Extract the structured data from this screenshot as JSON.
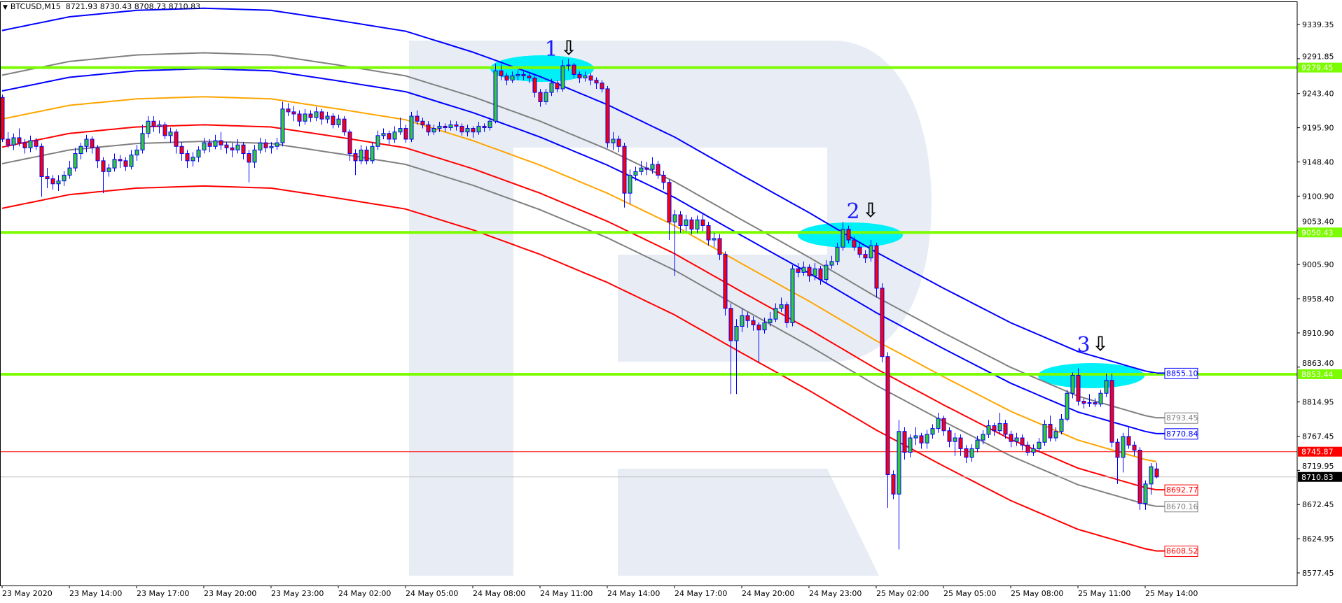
{
  "header": {
    "menu_icon": "triangle-down-icon",
    "symbol": "BTCUSD,M15",
    "ohlc": "8721.93 8730.43 8708.73 8710.83"
  },
  "chart_data": {
    "type": "candlestick",
    "symbol": "BTCUSD",
    "timeframe": "M15",
    "colors": {
      "bull_body": "#32cd32",
      "bear_body": "#ff0000",
      "outline": "#0000ff",
      "midline": "#ffa500",
      "level": "#7cfc00",
      "watermark": "#e8edf5",
      "highlight": "#00f0f8"
    },
    "yaxis": {
      "range": [
        8577.45,
        9339.35
      ],
      "ticks": [
        "9339.35",
        "9291.85",
        "9243.40",
        "9195.90",
        "9148.40",
        "9100.90",
        "9053.40",
        "9005.90",
        "8958.40",
        "8910.90",
        "8863.40",
        "8814.95",
        "8767.45",
        "8719.95",
        "8672.45",
        "8624.95",
        "8577.45"
      ]
    },
    "xaxis": {
      "ticks": [
        "23 May 2020",
        "23 May 14:00",
        "23 May 17:00",
        "23 May 20:00",
        "23 May 23:00",
        "24 May 02:00",
        "24 May 05:00",
        "24 May 08:00",
        "24 May 11:00",
        "24 May 14:00",
        "24 May 17:00",
        "24 May 20:00",
        "24 May 23:00",
        "25 May 02:00",
        "25 May 05:00",
        "25 May 08:00",
        "25 May 11:00",
        "25 May 14:00"
      ],
      "bars_per_tick": 12
    },
    "candles_ohlc": [
      [
        9238,
        9242,
        9176,
        9180
      ],
      [
        9180,
        9190,
        9168,
        9172
      ],
      [
        9172,
        9188,
        9165,
        9182
      ],
      [
        9182,
        9195,
        9170,
        9175
      ],
      [
        9175,
        9180,
        9160,
        9168
      ],
      [
        9168,
        9185,
        9162,
        9178
      ],
      [
        9178,
        9182,
        9165,
        9170
      ],
      [
        9170,
        9174,
        9100,
        9128
      ],
      [
        9128,
        9140,
        9112,
        9125
      ],
      [
        9125,
        9130,
        9110,
        9118
      ],
      [
        9118,
        9130,
        9108,
        9122
      ],
      [
        9122,
        9136,
        9115,
        9130
      ],
      [
        9130,
        9150,
        9125,
        9140
      ],
      [
        9140,
        9168,
        9135,
        9160
      ],
      [
        9160,
        9175,
        9152,
        9170
      ],
      [
        9170,
        9186,
        9162,
        9180
      ],
      [
        9180,
        9184,
        9160,
        9168
      ],
      [
        9168,
        9172,
        9140,
        9150
      ],
      [
        9150,
        9155,
        9105,
        9135
      ],
      [
        9135,
        9146,
        9128,
        9140
      ],
      [
        9140,
        9160,
        9135,
        9152
      ],
      [
        9152,
        9158,
        9140,
        9150
      ],
      [
        9150,
        9155,
        9136,
        9142
      ],
      [
        9142,
        9165,
        9138,
        9158
      ],
      [
        9158,
        9172,
        9150,
        9165
      ],
      [
        9165,
        9200,
        9160,
        9188
      ],
      [
        9188,
        9212,
        9182,
        9205
      ],
      [
        9205,
        9212,
        9190,
        9198
      ],
      [
        9198,
        9206,
        9188,
        9200
      ],
      [
        9200,
        9204,
        9180,
        9185
      ],
      [
        9185,
        9196,
        9175,
        9190
      ],
      [
        9190,
        9194,
        9160,
        9170
      ],
      [
        9170,
        9176,
        9150,
        9160
      ],
      [
        9160,
        9165,
        9140,
        9150
      ],
      [
        9150,
        9162,
        9142,
        9155
      ],
      [
        9155,
        9170,
        9148,
        9165
      ],
      [
        9165,
        9182,
        9160,
        9175
      ],
      [
        9175,
        9180,
        9162,
        9170
      ],
      [
        9170,
        9186,
        9166,
        9178
      ],
      [
        9178,
        9190,
        9165,
        9172
      ],
      [
        9172,
        9176,
        9160,
        9168
      ],
      [
        9168,
        9175,
        9155,
        9165
      ],
      [
        9165,
        9180,
        9160,
        9172
      ],
      [
        9172,
        9176,
        9152,
        9160
      ],
      [
        9160,
        9165,
        9120,
        9148
      ],
      [
        9148,
        9172,
        9140,
        9165
      ],
      [
        9165,
        9182,
        9160,
        9175
      ],
      [
        9175,
        9180,
        9162,
        9168
      ],
      [
        9168,
        9176,
        9160,
        9170
      ],
      [
        9170,
        9182,
        9165,
        9175
      ],
      [
        9175,
        9232,
        9170,
        9222
      ],
      [
        9222,
        9230,
        9212,
        9218
      ],
      [
        9218,
        9226,
        9205,
        9215
      ],
      [
        9215,
        9220,
        9198,
        9205
      ],
      [
        9205,
        9222,
        9200,
        9215
      ],
      [
        9215,
        9220,
        9204,
        9210
      ],
      [
        9210,
        9225,
        9205,
        9218
      ],
      [
        9218,
        9222,
        9200,
        9208
      ],
      [
        9208,
        9218,
        9202,
        9212
      ],
      [
        9212,
        9216,
        9195,
        9200
      ],
      [
        9200,
        9214,
        9196,
        9208
      ],
      [
        9208,
        9212,
        9185,
        9190
      ],
      [
        9190,
        9194,
        9150,
        9160
      ],
      [
        9160,
        9166,
        9130,
        9150
      ],
      [
        9150,
        9172,
        9145,
        9165
      ],
      [
        9165,
        9170,
        9145,
        9150
      ],
      [
        9150,
        9176,
        9146,
        9170
      ],
      [
        9170,
        9192,
        9165,
        9185
      ],
      [
        9185,
        9195,
        9180,
        9188
      ],
      [
        9188,
        9192,
        9172,
        9180
      ],
      [
        9180,
        9198,
        9175,
        9190
      ],
      [
        9190,
        9210,
        9186,
        9195
      ],
      [
        9195,
        9200,
        9175,
        9180
      ],
      [
        9180,
        9218,
        9176,
        9212
      ],
      [
        9212,
        9220,
        9200,
        9205
      ],
      [
        9205,
        9210,
        9195,
        9200
      ],
      [
        9200,
        9205,
        9185,
        9190
      ],
      [
        9190,
        9200,
        9186,
        9195
      ],
      [
        9195,
        9204,
        9190,
        9198
      ],
      [
        9198,
        9202,
        9190,
        9196
      ],
      [
        9196,
        9206,
        9192,
        9200
      ],
      [
        9200,
        9205,
        9192,
        9198
      ],
      [
        9198,
        9202,
        9185,
        9190
      ],
      [
        9190,
        9200,
        9184,
        9195
      ],
      [
        9195,
        9198,
        9182,
        9190
      ],
      [
        9190,
        9204,
        9186,
        9198
      ],
      [
        9198,
        9202,
        9190,
        9196
      ],
      [
        9196,
        9210,
        9192,
        9205
      ],
      [
        9205,
        9285,
        9202,
        9275
      ],
      [
        9275,
        9284,
        9262,
        9268
      ],
      [
        9268,
        9272,
        9255,
        9262
      ],
      [
        9262,
        9274,
        9258,
        9268
      ],
      [
        9268,
        9276,
        9262,
        9270
      ],
      [
        9270,
        9274,
        9262,
        9268
      ],
      [
        9268,
        9272,
        9258,
        9265
      ],
      [
        9265,
        9268,
        9238,
        9245
      ],
      [
        9245,
        9250,
        9225,
        9232
      ],
      [
        9232,
        9250,
        9228,
        9245
      ],
      [
        9245,
        9264,
        9240,
        9258
      ],
      [
        9258,
        9262,
        9245,
        9250
      ],
      [
        9250,
        9290,
        9246,
        9282
      ],
      [
        9282,
        9292,
        9275,
        9283
      ],
      [
        9283,
        9286,
        9265,
        9270
      ],
      [
        9270,
        9274,
        9258,
        9265
      ],
      [
        9265,
        9274,
        9260,
        9268
      ],
      [
        9268,
        9272,
        9255,
        9262
      ],
      [
        9262,
        9266,
        9250,
        9258
      ],
      [
        9258,
        9262,
        9245,
        9250
      ],
      [
        9250,
        9254,
        9168,
        9175
      ],
      [
        9175,
        9190,
        9165,
        9180
      ],
      [
        9180,
        9185,
        9162,
        9170
      ],
      [
        9170,
        9175,
        9085,
        9105
      ],
      [
        9105,
        9138,
        9090,
        9130
      ],
      [
        9130,
        9142,
        9122,
        9135
      ],
      [
        9135,
        9150,
        9130,
        9140
      ],
      [
        9140,
        9148,
        9130,
        9138
      ],
      [
        9138,
        9155,
        9132,
        9145
      ],
      [
        9145,
        9150,
        9125,
        9130
      ],
      [
        9130,
        9136,
        9110,
        9120
      ],
      [
        9120,
        9124,
        9040,
        9065
      ],
      [
        9065,
        9082,
        8990,
        9075
      ],
      [
        9075,
        9080,
        9050,
        9060
      ],
      [
        9060,
        9075,
        9052,
        9068
      ],
      [
        9068,
        9072,
        9048,
        9055
      ],
      [
        9055,
        9074,
        9050,
        9068
      ],
      [
        9068,
        9076,
        9052,
        9060
      ],
      [
        9060,
        9065,
        9032,
        9040
      ],
      [
        9040,
        9050,
        9030,
        9042
      ],
      [
        9042,
        9048,
        9012,
        9020
      ],
      [
        9020,
        9024,
        8935,
        8945
      ],
      [
        8945,
        8952,
        8826,
        8900
      ],
      [
        8900,
        8930,
        8826,
        8920
      ],
      [
        8920,
        8945,
        8912,
        8935
      ],
      [
        8935,
        8940,
        8918,
        8928
      ],
      [
        8928,
        8934,
        8914,
        8922
      ],
      [
        8922,
        8926,
        8870,
        8915
      ],
      [
        8915,
        8932,
        8910,
        8925
      ],
      [
        8925,
        8940,
        8920,
        8930
      ],
      [
        8930,
        8952,
        8926,
        8945
      ],
      [
        8945,
        8960,
        8940,
        8950
      ],
      [
        8950,
        8954,
        8918,
        8925
      ],
      [
        8925,
        9005,
        8920,
        9000
      ],
      [
        9000,
        9008,
        8988,
        8995
      ],
      [
        8995,
        9010,
        8990,
        9002
      ],
      [
        9002,
        9006,
        8982,
        8990
      ],
      [
        8990,
        9008,
        8984,
        9000
      ],
      [
        9000,
        9004,
        8978,
        8985
      ],
      [
        8985,
        9012,
        8980,
        9005
      ],
      [
        9005,
        9018,
        9000,
        9010
      ],
      [
        9010,
        9036,
        9005,
        9030
      ],
      [
        9030,
        9065,
        9025,
        9055
      ],
      [
        9055,
        9060,
        9035,
        9040
      ],
      [
        9040,
        9045,
        9025,
        9030
      ],
      [
        9030,
        9036,
        9015,
        9020
      ],
      [
        9020,
        9026,
        9008,
        9015
      ],
      [
        9015,
        9040,
        9010,
        9032
      ],
      [
        9032,
        9036,
        8960,
        8973
      ],
      [
        8973,
        8980,
        8870,
        8878
      ],
      [
        8878,
        8884,
        8668,
        8714
      ],
      [
        8714,
        8720,
        8680,
        8687
      ],
      [
        8687,
        8790,
        8610,
        8774
      ],
      [
        8774,
        8780,
        8735,
        8745
      ],
      [
        8745,
        8770,
        8738,
        8765
      ],
      [
        8765,
        8780,
        8755,
        8768
      ],
      [
        8768,
        8772,
        8750,
        8758
      ],
      [
        8758,
        8776,
        8750,
        8770
      ],
      [
        8770,
        8784,
        8764,
        8778
      ],
      [
        8778,
        8800,
        8772,
        8792
      ],
      [
        8792,
        8796,
        8768,
        8775
      ],
      [
        8775,
        8780,
        8752,
        8760
      ],
      [
        8760,
        8772,
        8740,
        8765
      ],
      [
        8765,
        8770,
        8740,
        8750
      ],
      [
        8750,
        8755,
        8730,
        8738
      ],
      [
        8738,
        8756,
        8732,
        8750
      ],
      [
        8750,
        8768,
        8745,
        8762
      ],
      [
        8762,
        8776,
        8756,
        8770
      ],
      [
        8770,
        8790,
        8765,
        8782
      ],
      [
        8782,
        8786,
        8768,
        8775
      ],
      [
        8775,
        8800,
        8770,
        8785
      ],
      [
        8785,
        8790,
        8764,
        8770
      ],
      [
        8770,
        8775,
        8752,
        8760
      ],
      [
        8760,
        8772,
        8754,
        8765
      ],
      [
        8765,
        8770,
        8748,
        8755
      ],
      [
        8755,
        8760,
        8740,
        8745
      ],
      [
        8745,
        8756,
        8740,
        8750
      ],
      [
        8750,
        8765,
        8745,
        8759
      ],
      [
        8759,
        8790,
        8754,
        8784
      ],
      [
        8784,
        8796,
        8760,
        8765
      ],
      [
        8765,
        8780,
        8760,
        8774
      ],
      [
        8774,
        8798,
        8770,
        8791
      ],
      [
        8791,
        8832,
        8788,
        8827
      ],
      [
        8827,
        8856,
        8820,
        8852
      ],
      [
        8852,
        8862,
        8810,
        8816
      ],
      [
        8816,
        8820,
        8806,
        8813
      ],
      [
        8813,
        8826,
        8808,
        8814
      ],
      [
        8814,
        8820,
        8808,
        8812
      ],
      [
        8812,
        8832,
        8808,
        8827
      ],
      [
        8827,
        8854,
        8822,
        8845
      ],
      [
        8845,
        8854,
        8752,
        8759
      ],
      [
        8759,
        8764,
        8701,
        8738
      ],
      [
        8738,
        8772,
        8717,
        8767
      ],
      [
        8767,
        8780,
        8750,
        8755
      ],
      [
        8755,
        8760,
        8740,
        8748
      ],
      [
        8748,
        8752,
        8665,
        8674
      ],
      [
        8674,
        8706,
        8665,
        8701
      ],
      [
        8701,
        8730,
        8686,
        8725
      ],
      [
        8721.93,
        8730.43,
        8708.73,
        8710.83
      ]
    ],
    "channel": {
      "midline_at_ticks": [
        9208,
        9227,
        9236,
        9239,
        9236,
        9222,
        9207,
        9178,
        9144,
        9105,
        9060,
        9007,
        8955,
        8900,
        8850,
        8802,
        8762,
        8735
      ],
      "midline_last": 8732,
      "bands": [
        {
          "color": "#0000ff",
          "offset": 123,
          "label": "8855.10"
        },
        {
          "color": "#808080",
          "offset": 61,
          "label": "8793.45"
        },
        {
          "color": "#0000ff",
          "offset": 39,
          "label": "8770.84"
        },
        {
          "color": "#ff0000",
          "offset": -39,
          "label": "8692.77"
        },
        {
          "color": "#808080",
          "offset": -62,
          "label": "8670.16"
        },
        {
          "color": "#ff0000",
          "offset": -124,
          "label": "8608.52"
        }
      ]
    },
    "levels": [
      {
        "price": 9279.45,
        "label": "9279.45",
        "color": "#7cfc00",
        "style": "thick"
      },
      {
        "price": 9050.43,
        "label": "9050.43",
        "color": "#7cfc00",
        "style": "thick"
      },
      {
        "price": 8853.44,
        "label": "8853.44",
        "color": "#7cfc00",
        "style": "thick"
      },
      {
        "price": 8745.87,
        "label": "8745.87",
        "color": "#ff0000",
        "style": "thin"
      },
      {
        "price": 8710.83,
        "label": "8710.83",
        "color": "#c0c0c0",
        "style": "bid",
        "label_bg": "#000000"
      }
    ],
    "annotations": [
      {
        "number": "1",
        "arrow": "⇩",
        "icon": "down-arrow-icon"
      },
      {
        "number": "2",
        "arrow": "⇩",
        "icon": "down-arrow-icon"
      },
      {
        "number": "3",
        "arrow": "⇩",
        "icon": "down-arrow-icon"
      }
    ],
    "watermark": "R"
  }
}
